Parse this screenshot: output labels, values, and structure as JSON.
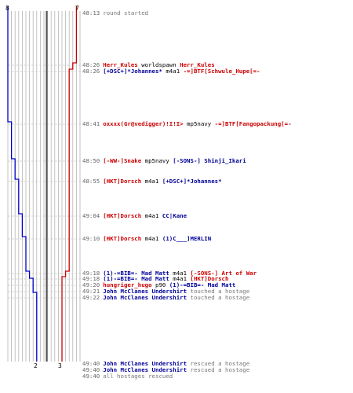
{
  "colors": {
    "team_blue": "#0000cc",
    "team_red": "#cc0000",
    "grid": "#b4b4b4",
    "time_bar": "#555555",
    "dash": "#c8c8c8"
  },
  "score_labels": {
    "blue_start": "8",
    "red_start": "7",
    "blue_end": "2",
    "red_end": "3"
  },
  "events": [
    {
      "time": "48:13",
      "parts": [
        {
          "text": "round started",
          "style": "sys"
        }
      ]
    },
    {
      "time": "48:26",
      "parts": [
        {
          "text": "Herr_Kules",
          "style": "red"
        },
        {
          "text": " worldspawn ",
          "style": "act"
        },
        {
          "text": "Herr_Kules",
          "style": "red"
        }
      ]
    },
    {
      "time": "48:26",
      "parts": [
        {
          "text": "[+DSC+]*Johannes*",
          "style": "blue"
        },
        {
          "text": " m4a1 ",
          "style": "act"
        },
        {
          "text": "-=]BTF[Schwule_Hupe[=-",
          "style": "red"
        }
      ]
    },
    {
      "time": "48:41",
      "parts": [
        {
          "text": "oxxxx(Gr@vedigger)!I!I>",
          "style": "red"
        },
        {
          "text": " mp5navy ",
          "style": "act"
        },
        {
          "text": "-=]BTF[Fangopackung[=-",
          "style": "red"
        }
      ]
    },
    {
      "time": "48:50",
      "parts": [
        {
          "text": "[-WW-]Snake",
          "style": "red"
        },
        {
          "text": " mp5navy ",
          "style": "act"
        },
        {
          "text": "[-SONS-] Shinji_Ikari",
          "style": "blue"
        }
      ]
    },
    {
      "time": "48:55",
      "parts": [
        {
          "text": "[HKT]Dorsch",
          "style": "red"
        },
        {
          "text": " m4a1 ",
          "style": "act"
        },
        {
          "text": "[+DSC+]*Johannes*",
          "style": "blue"
        }
      ]
    },
    {
      "time": "49:04",
      "parts": [
        {
          "text": "[HKT]Dorsch",
          "style": "red"
        },
        {
          "text": " m4a1 ",
          "style": "act"
        },
        {
          "text": "CC|Kane",
          "style": "blue"
        }
      ]
    },
    {
      "time": "49:10",
      "parts": [
        {
          "text": "[HKT]Dorsch",
          "style": "red"
        },
        {
          "text": " m4a1 ",
          "style": "act"
        },
        {
          "text": "(1)C___]MERLIN",
          "style": "blue"
        }
      ]
    },
    {
      "time": "49:18",
      "parts": [
        {
          "text": "(1)-=BIB=- Mad Matt",
          "style": "blue"
        },
        {
          "text": " m4a1 ",
          "style": "act"
        },
        {
          "text": "[-SONS-] Art of War",
          "style": "red"
        }
      ]
    },
    {
      "time": "49:18",
      "parts": [
        {
          "text": "(1)-=BIB=- Mad Matt",
          "style": "blue"
        },
        {
          "text": " m4a1 ",
          "style": "act"
        },
        {
          "text": "[HKT]Dorsch",
          "style": "red"
        }
      ]
    },
    {
      "time": "49:20",
      "parts": [
        {
          "text": "hungriger_hugo",
          "style": "red"
        },
        {
          "text": " p90 ",
          "style": "act"
        },
        {
          "text": "(1)-=BIB=- Mad Matt",
          "style": "blue"
        }
      ]
    },
    {
      "time": "49:21",
      "parts": [
        {
          "text": "John McClanes Undershirt",
          "style": "blue"
        },
        {
          "text": " touched a hostage",
          "style": "sys"
        }
      ]
    },
    {
      "time": "49:22",
      "parts": [
        {
          "text": "John McClanes Undershirt",
          "style": "blue"
        },
        {
          "text": " touched a hostage",
          "style": "sys"
        }
      ]
    },
    {
      "time": "49:40",
      "parts": [
        {
          "text": "John McClanes Undershirt",
          "style": "blue"
        },
        {
          "text": " rescued a hostage",
          "style": "sys"
        }
      ]
    },
    {
      "time": "49:40",
      "parts": [
        {
          "text": "John McClanes Undershirt",
          "style": "blue"
        },
        {
          "text": " rescued a hostage",
          "style": "sys"
        }
      ]
    },
    {
      "time": "49:40",
      "parts": [
        {
          "text": "all hostages rescued",
          "style": "sys"
        }
      ]
    }
  ]
}
